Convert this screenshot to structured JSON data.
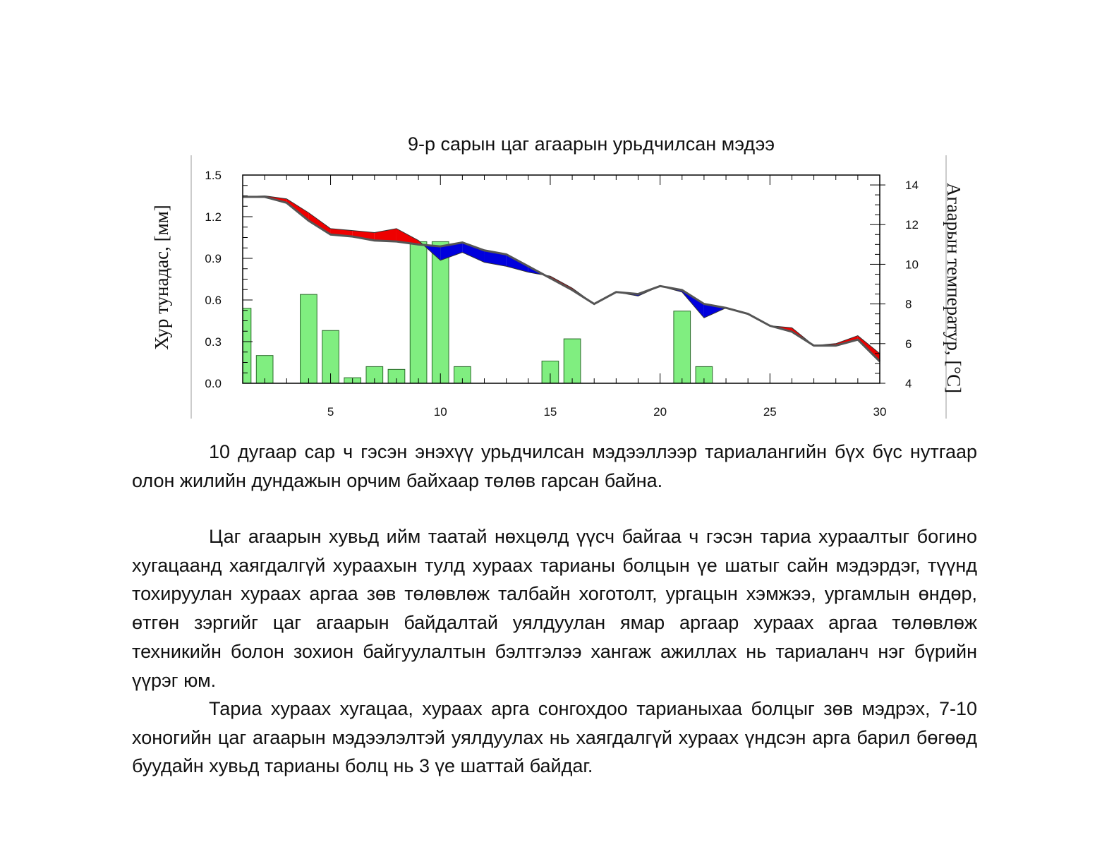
{
  "chart_data": {
    "type": "bar+line",
    "title": "9-р сарын цаг агаарын урьдчилсан мэдээ",
    "ylabel_left": "Хур тунадас, [мм]",
    "ylabel_right": "Агаарын температур, [°C]",
    "xlabel": "",
    "x_ticks": [
      "5",
      "10",
      "15",
      "20",
      "25",
      "30"
    ],
    "y_left_ticks": [
      "0.0",
      "0.3",
      "0.6",
      "0.9",
      "1.2",
      "1.5"
    ],
    "y_right_ticks": [
      "4",
      "6",
      "8",
      "10",
      "12",
      "14"
    ],
    "xlim": [
      1,
      30
    ],
    "ylim_left": [
      0,
      1.5
    ],
    "ylim_right": [
      4,
      14.5
    ],
    "precip_color": "#80ee80",
    "warm_color": "#ee0000",
    "cold_color": "#0000dd",
    "line_color": "#555555",
    "precipitation": {
      "x": [
        1,
        2,
        4,
        5,
        6,
        7,
        8,
        9,
        10,
        11,
        15,
        16,
        21,
        22
      ],
      "values": [
        0.54,
        0.2,
        0.64,
        0.38,
        0.04,
        0.12,
        0.1,
        1.02,
        1.02,
        0.12,
        0.16,
        0.32,
        0.52,
        0.12
      ]
    },
    "series": [
      {
        "name": "",
        "x": [
          1,
          2,
          3,
          4,
          5,
          6,
          7,
          8,
          9,
          10,
          11,
          12,
          13,
          14,
          15,
          16,
          17,
          18,
          19,
          20,
          21,
          22,
          23,
          24,
          25,
          26,
          27,
          28,
          29,
          30
        ],
        "values": [
          13.4,
          13.4,
          13.1,
          12.2,
          11.5,
          11.4,
          11.2,
          11.15,
          11.0,
          10.9,
          11.1,
          10.7,
          10.5,
          9.9,
          9.3,
          8.7,
          8.0,
          8.6,
          8.5,
          8.9,
          8.7,
          8.0,
          7.8,
          7.5,
          6.9,
          6.6,
          5.9,
          5.9,
          6.2,
          5.1
        ]
      },
      {
        "name": "",
        "x": [
          1,
          2,
          3,
          4,
          5,
          6,
          7,
          8,
          9,
          10,
          11,
          12,
          13,
          14,
          15,
          16,
          17,
          18,
          19,
          20,
          21,
          22,
          23,
          24,
          25,
          26,
          27,
          28,
          29,
          30
        ],
        "values": [
          13.4,
          13.45,
          13.3,
          12.6,
          11.8,
          11.7,
          11.6,
          11.8,
          11.2,
          10.2,
          10.6,
          10.1,
          9.9,
          9.6,
          9.4,
          8.8,
          8.0,
          8.6,
          8.4,
          8.9,
          8.6,
          7.3,
          7.8,
          7.5,
          6.9,
          6.8,
          5.9,
          6.0,
          6.4,
          5.5
        ]
      }
    ]
  },
  "text": {
    "p1": "10 дугаар сар ч гэсэн энэхүү урьдчилсан мэдээллээр тариалангийн бүх бүс нутгаар олон жилийн дундажын орчим байхаар төлөв гарсан байна.",
    "p2": "Цаг агаарын хувьд ийм таатай нөхцөлд үүсч байгаа ч гэсэн тариа хураалтыг богино хугацаанд хаягдалгүй хураахын тулд хураах тарианы болцын үе шатыг сайн мэдэрдэг, түүнд тохируулан хураах аргаа зөв төлөвлөж талбайн хоготолт, ургацын хэмжээ, ургамлын өндөр, өтгөн зэргийг цаг агаарын байдалтай уялдуулан ямар аргаар хураах аргаа төлөвлөж техникийн болон зохион байгуулалтын бэлтгэлээ хангаж ажиллах нь тариаланч нэг бүрийн үүрэг юм.",
    "p3": "Тариа хураах хугацаа, хураах арга сонгохдоо тарианыхаа болцыг зөв мэдрэх, 7-10 хоногийн цаг агаарын мэдээлэлтэй уялдуулах нь хаягдалгүй хураах үндсэн арга барил бөгөөд буудайн хувьд тарианы болц нь 3 үе шаттай байдаг."
  }
}
